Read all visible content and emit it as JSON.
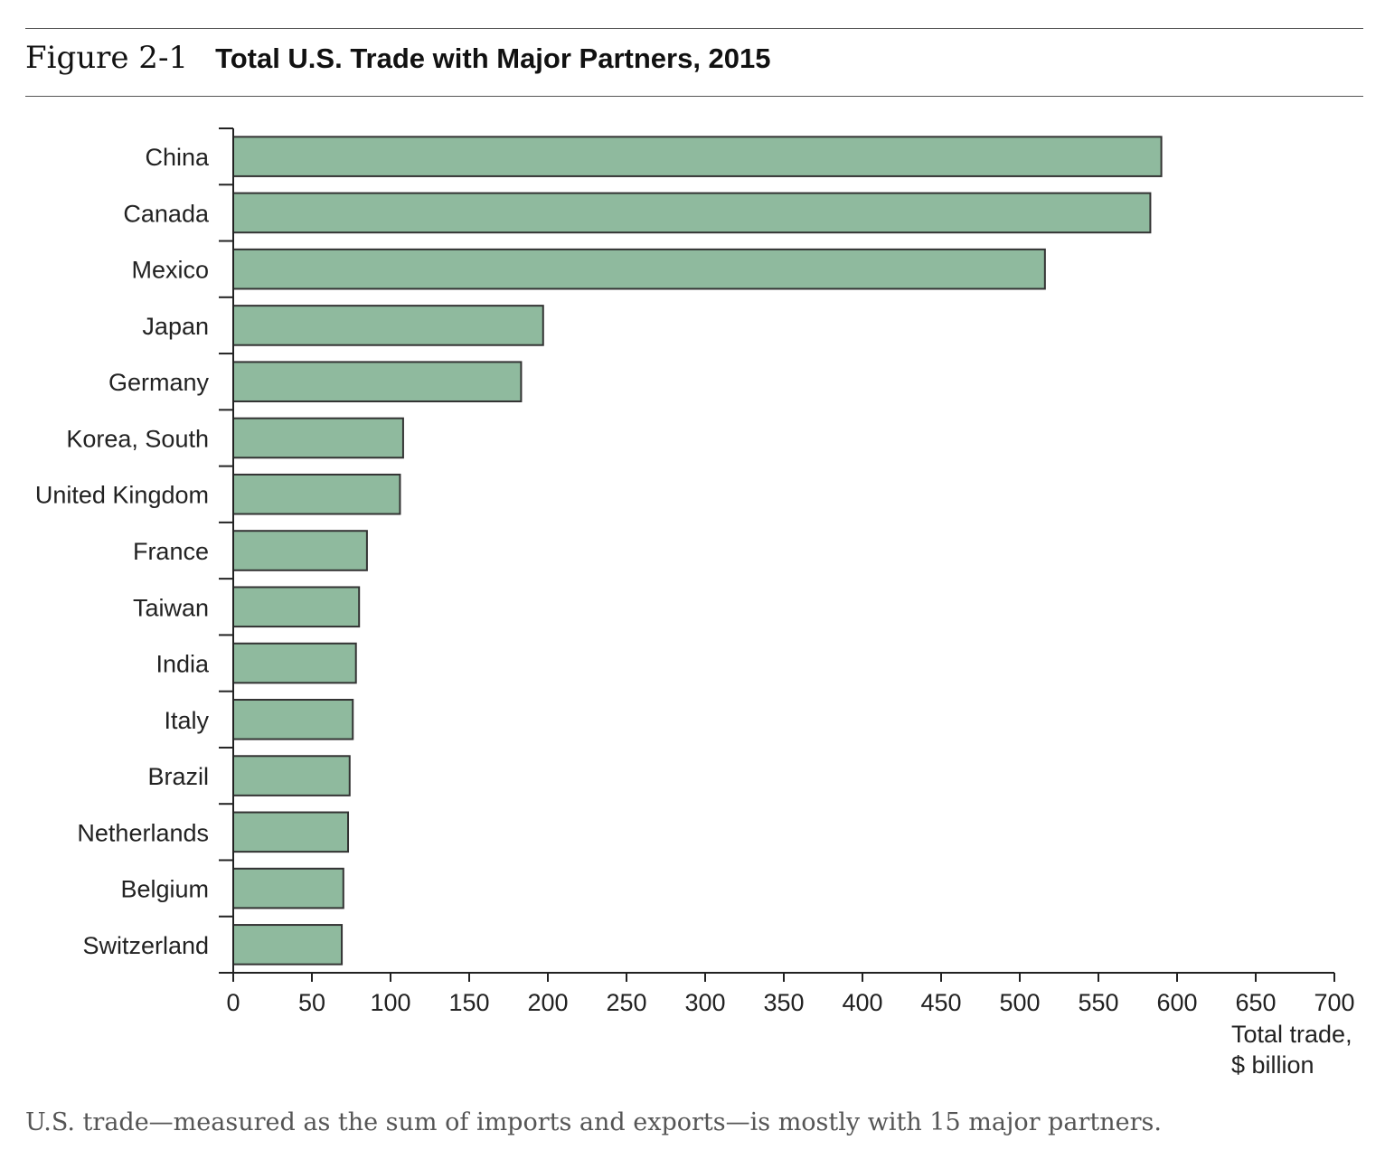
{
  "figure": {
    "label": "Figure 2-1",
    "title": "Total U.S. Trade with Major Partners, 2015",
    "caption": "U.S. trade—measured as the sum of imports and exports—is mostly with 15 major partners."
  },
  "chart_data": {
    "type": "bar",
    "orientation": "horizontal",
    "title": "Total U.S. Trade with Major Partners, 2015",
    "categories": [
      "China",
      "Canada",
      "Mexico",
      "Japan",
      "Germany",
      "Korea, South",
      "United Kingdom",
      "France",
      "Taiwan",
      "India",
      "Italy",
      "Brazil",
      "Netherlands",
      "Belgium",
      "Switzerland"
    ],
    "values": [
      590,
      583,
      516,
      197,
      183,
      108,
      106,
      85,
      80,
      78,
      76,
      74,
      73,
      70,
      69
    ],
    "xlabel": [
      "Total trade,",
      "$ billion"
    ],
    "ylabel": "",
    "xlim": [
      0,
      700
    ],
    "xticks": [
      0,
      50,
      100,
      150,
      200,
      250,
      300,
      350,
      400,
      450,
      500,
      550,
      600,
      650,
      700
    ],
    "grid": false,
    "bar_color": "#8fba9e",
    "bar_edge_color": "#333333"
  }
}
